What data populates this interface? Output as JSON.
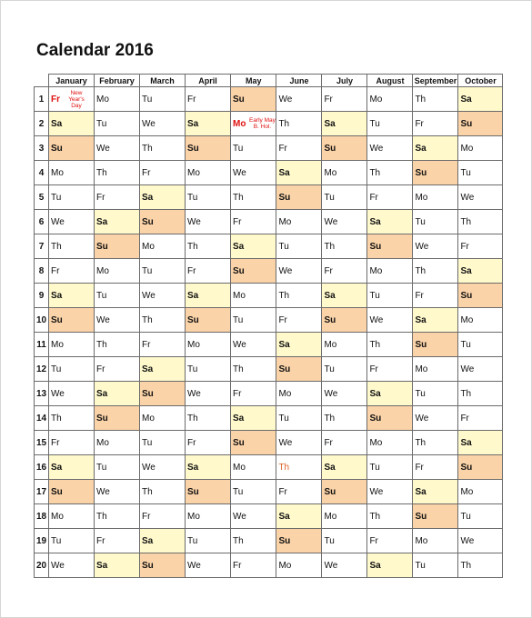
{
  "title": "Calendar 2016",
  "months": [
    "January",
    "February",
    "March",
    "April",
    "May",
    "June",
    "July",
    "August",
    "September",
    "October"
  ],
  "colors": {
    "saturday_fill": "#fff9cc",
    "sunday_fill": "#fbd3a8",
    "holiday_text": "#e01010"
  },
  "rows": [
    {
      "n": "1",
      "d": [
        "Fr",
        "Mo",
        "Tu",
        "Fr",
        "Su",
        "We",
        "Fr",
        "Mo",
        "Th",
        "Sa"
      ]
    },
    {
      "n": "2",
      "d": [
        "Sa",
        "Tu",
        "We",
        "Sa",
        "Mo",
        "Th",
        "Sa",
        "Tu",
        "Fr",
        "Su"
      ]
    },
    {
      "n": "3",
      "d": [
        "Su",
        "We",
        "Th",
        "Su",
        "Tu",
        "Fr",
        "Su",
        "We",
        "Sa",
        "Mo"
      ]
    },
    {
      "n": "4",
      "d": [
        "Mo",
        "Th",
        "Fr",
        "Mo",
        "We",
        "Sa",
        "Mo",
        "Th",
        "Su",
        "Tu"
      ]
    },
    {
      "n": "5",
      "d": [
        "Tu",
        "Fr",
        "Sa",
        "Tu",
        "Th",
        "Su",
        "Tu",
        "Fr",
        "Mo",
        "We"
      ]
    },
    {
      "n": "6",
      "d": [
        "We",
        "Sa",
        "Su",
        "We",
        "Fr",
        "Mo",
        "We",
        "Sa",
        "Tu",
        "Th"
      ]
    },
    {
      "n": "7",
      "d": [
        "Th",
        "Su",
        "Mo",
        "Th",
        "Sa",
        "Tu",
        "Th",
        "Su",
        "We",
        "Fr"
      ]
    },
    {
      "n": "8",
      "d": [
        "Fr",
        "Mo",
        "Tu",
        "Fr",
        "Su",
        "We",
        "Fr",
        "Mo",
        "Th",
        "Sa"
      ]
    },
    {
      "n": "9",
      "d": [
        "Sa",
        "Tu",
        "We",
        "Sa",
        "Mo",
        "Th",
        "Sa",
        "Tu",
        "Fr",
        "Su"
      ]
    },
    {
      "n": "10",
      "d": [
        "Su",
        "We",
        "Th",
        "Su",
        "Tu",
        "Fr",
        "Su",
        "We",
        "Sa",
        "Mo"
      ]
    },
    {
      "n": "11",
      "d": [
        "Mo",
        "Th",
        "Fr",
        "Mo",
        "We",
        "Sa",
        "Mo",
        "Th",
        "Su",
        "Tu"
      ]
    },
    {
      "n": "12",
      "d": [
        "Tu",
        "Fr",
        "Sa",
        "Tu",
        "Th",
        "Su",
        "Tu",
        "Fr",
        "Mo",
        "We"
      ]
    },
    {
      "n": "13",
      "d": [
        "We",
        "Sa",
        "Su",
        "We",
        "Fr",
        "Mo",
        "We",
        "Sa",
        "Tu",
        "Th"
      ]
    },
    {
      "n": "14",
      "d": [
        "Th",
        "Su",
        "Mo",
        "Th",
        "Sa",
        "Tu",
        "Th",
        "Su",
        "We",
        "Fr"
      ]
    },
    {
      "n": "15",
      "d": [
        "Fr",
        "Mo",
        "Tu",
        "Fr",
        "Su",
        "We",
        "Fr",
        "Mo",
        "Th",
        "Sa"
      ]
    },
    {
      "n": "16",
      "d": [
        "Sa",
        "Tu",
        "We",
        "Sa",
        "Mo",
        "Th",
        "Sa",
        "Tu",
        "Fr",
        "Su"
      ]
    },
    {
      "n": "17",
      "d": [
        "Su",
        "We",
        "Th",
        "Su",
        "Tu",
        "Fr",
        "Su",
        "We",
        "Sa",
        "Mo"
      ]
    },
    {
      "n": "18",
      "d": [
        "Mo",
        "Th",
        "Fr",
        "Mo",
        "We",
        "Sa",
        "Mo",
        "Th",
        "Su",
        "Tu"
      ]
    },
    {
      "n": "19",
      "d": [
        "Tu",
        "Fr",
        "Sa",
        "Tu",
        "Th",
        "Su",
        "Tu",
        "Fr",
        "Mo",
        "We"
      ]
    },
    {
      "n": "20",
      "d": [
        "We",
        "Sa",
        "Su",
        "We",
        "Fr",
        "Mo",
        "We",
        "Sa",
        "Tu",
        "Th"
      ]
    }
  ],
  "holidays": [
    {
      "row": 0,
      "col": 0,
      "note": "New Year's Day"
    },
    {
      "row": 1,
      "col": 4,
      "note": "Early May B. Hol."
    }
  ],
  "orange_text": [
    {
      "row": 15,
      "col": 5
    }
  ]
}
